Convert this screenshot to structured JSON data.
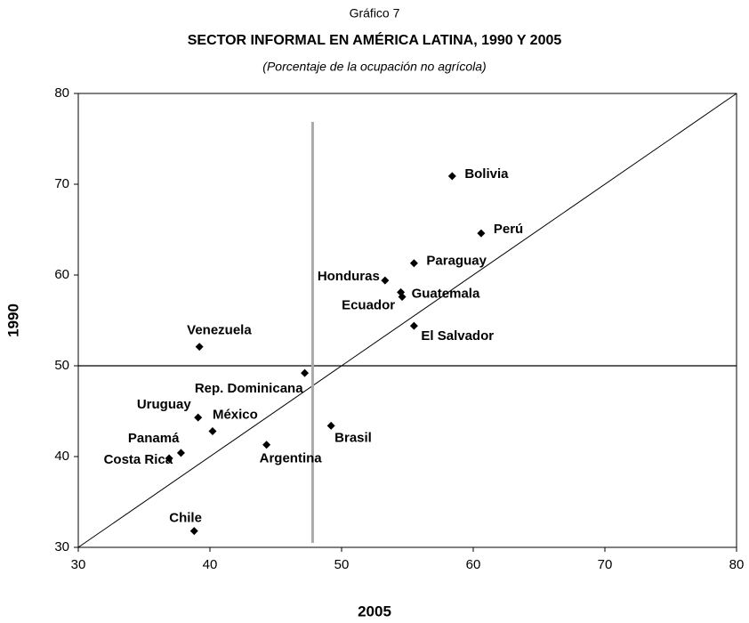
{
  "chart_data": {
    "type": "scatter",
    "suptitle": "Gráfico 7",
    "title": "SECTOR INFORMAL EN AMÉRICA LATINA, 1990 Y 2005",
    "subtitle": "(Porcentaje de la ocupación no agrícola)",
    "x_label": "2005",
    "y_label": "1990",
    "labels": [
      "Bolivia",
      "Perú",
      "Paraguay",
      "Honduras",
      "Guatemala",
      "Ecuador",
      "El Salvador",
      "Venezuela",
      "Rep. Dominicana",
      "Uruguay",
      "México",
      "Brasil",
      "Argentina",
      "Panamá",
      "Costa Rica",
      "Chile"
    ],
    "x": [
      58.4,
      60.6,
      55.5,
      53.3,
      54.5,
      54.6,
      55.5,
      39.2,
      47.2,
      39.1,
      40.2,
      49.2,
      44.3,
      37.8,
      36.9,
      38.8
    ],
    "values": [
      70.9,
      64.6,
      61.3,
      59.4,
      58.1,
      57.6,
      54.4,
      52.1,
      49.2,
      44.3,
      42.8,
      43.4,
      41.3,
      40.4,
      39.8,
      31.8
    ],
    "color": "#000000",
    "hline": 50,
    "vline": 47.8,
    "diagonal": true,
    "xlim": [
      30,
      80
    ],
    "ylim": [
      30,
      80
    ],
    "xticks": [
      30,
      40,
      50,
      60,
      70,
      80
    ],
    "yticks": [
      30,
      40,
      50,
      60,
      70,
      80
    ]
  }
}
